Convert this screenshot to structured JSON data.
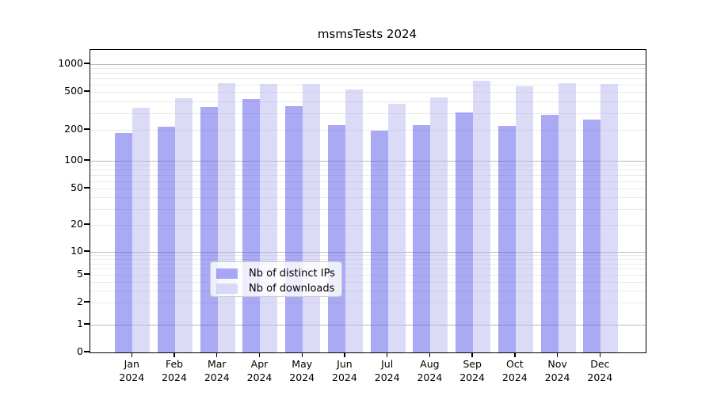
{
  "chart_data": {
    "type": "bar",
    "title": "msmsTests 2024",
    "categories": [
      "Jan",
      "Feb",
      "Mar",
      "Apr",
      "May",
      "Jun",
      "Jul",
      "Aug",
      "Sep",
      "Oct",
      "Nov",
      "Dec"
    ],
    "category_year": "2024",
    "series": [
      {
        "name": "Nb of distinct IPs",
        "color": "#A9A9F4",
        "values": [
          186,
          215,
          350,
          425,
          357,
          224,
          197,
          224,
          302,
          220,
          285,
          255
        ]
      },
      {
        "name": "Nb of downloads",
        "color": "#DBDBF8",
        "values": [
          344,
          430,
          620,
          605,
          605,
          530,
          378,
          440,
          660,
          575,
          620,
          605
        ]
      }
    ],
    "y_ticks": [
      0,
      1,
      2,
      5,
      10,
      20,
      50,
      100,
      200,
      500,
      1000
    ],
    "y_scale": "log-with-zero",
    "ylim": [
      0,
      1500
    ],
    "grid": "on",
    "legend_position": "bottom-center",
    "colors": {
      "major_gridline": "#B9B9B9",
      "minor_gridline": "#EAEAEA",
      "axis": "#000000"
    }
  }
}
